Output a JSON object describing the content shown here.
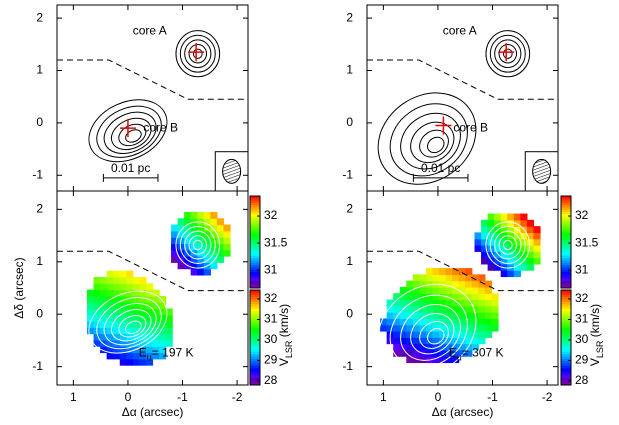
{
  "chart_data": [
    {
      "type": "contour",
      "xlim": [
        1.3,
        -2.2
      ],
      "ylim": [
        -1.3,
        2.25
      ],
      "xticks": [
        1,
        0,
        -1,
        -2
      ],
      "yticks": [
        2,
        1,
        0,
        -1
      ],
      "annotations": [
        "core A",
        "core B",
        "0.01 pc"
      ]
    },
    {
      "type": "contour",
      "xlim": [
        1.3,
        -2.2
      ],
      "ylim": [
        -1.3,
        2.25
      ],
      "xticks": [
        1,
        0,
        -1,
        -2
      ],
      "yticks": [
        2,
        1,
        0,
        -1
      ],
      "annotations": [
        "core A",
        "core B",
        "0.01 pc"
      ]
    },
    {
      "type": "image",
      "xlim": [
        1.3,
        -2.2
      ],
      "ylim": [
        -1.35,
        2.35
      ],
      "xticks": [
        1,
        0,
        -1,
        -2
      ],
      "yticks": [
        2,
        1,
        0,
        -1
      ],
      "xlabel": "Δα (arcsec)",
      "ylabel": "Δδ (arcsec)",
      "annotation": {
        "text": "E",
        "sub": "u",
        "rest": "= 197 K"
      },
      "colorbars": [
        {
          "ylim": [
            30.67,
            32.37
          ],
          "yticks": [
            31,
            31.5,
            32
          ]
        },
        {
          "ylim": [
            27.8,
            32.44
          ],
          "yticks": [
            28,
            29,
            30,
            31,
            32
          ]
        }
      ],
      "colorbar_label": {
        "text": "V",
        "sub": "LSR",
        "rest": " (km/s)"
      }
    },
    {
      "type": "image",
      "xlim": [
        1.3,
        -2.2
      ],
      "ylim": [
        -1.35,
        2.35
      ],
      "xticks": [
        1,
        0,
        -1,
        -2
      ],
      "yticks": [
        2,
        1,
        0,
        -1
      ],
      "xlabel": "Δα (arcsec)",
      "annotation": {
        "text": "E",
        "sub": "u",
        "rest": "= 307 K"
      },
      "colorbars": [
        {
          "ylim": [
            30.67,
            32.37
          ],
          "yticks": [
            31,
            31.5,
            32
          ]
        },
        {
          "ylim": [
            27.8,
            32.44
          ],
          "yticks": [
            28,
            29,
            30,
            31,
            32
          ]
        }
      ],
      "colorbar_label": {
        "text": "V",
        "sub": "LSR",
        "rest": " (km/s)"
      }
    }
  ]
}
